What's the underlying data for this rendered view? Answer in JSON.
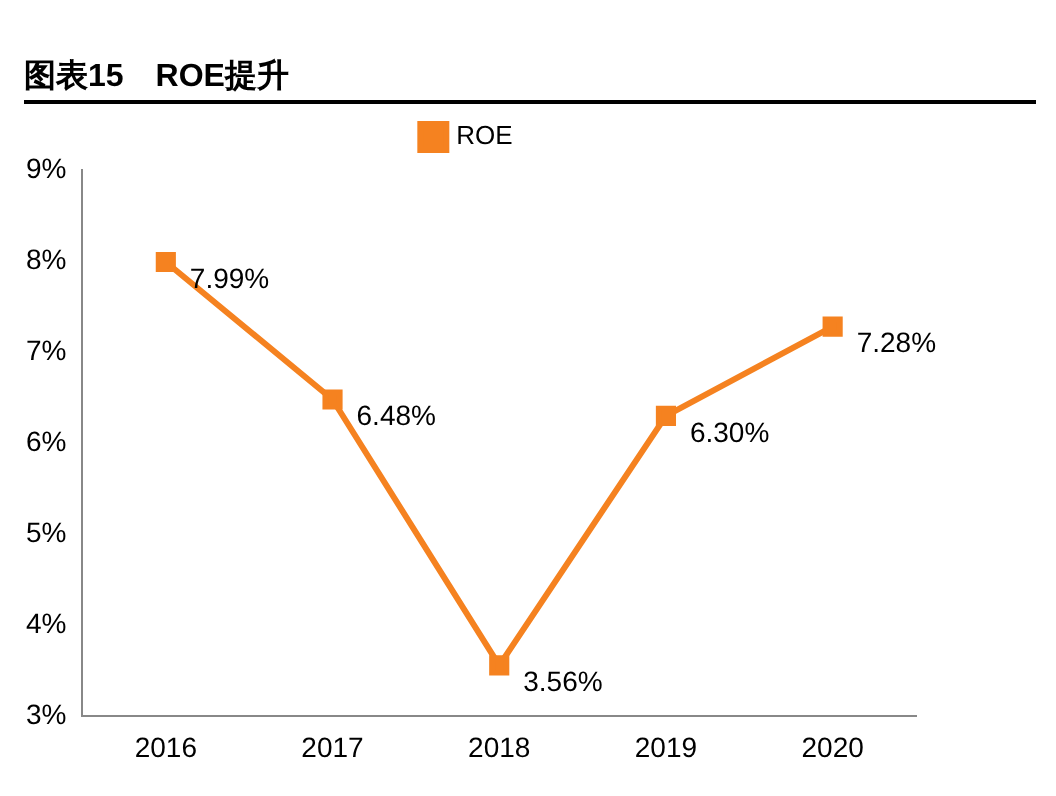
{
  "chart_data": {
    "type": "line",
    "title": "图表15　ROE提升",
    "categories": [
      "2016",
      "2017",
      "2018",
      "2019",
      "2020"
    ],
    "series": [
      {
        "name": "ROE",
        "color": "#f58220",
        "values": [
          7.99,
          6.48,
          3.56,
          6.3,
          7.28
        ],
        "value_labels": [
          "7.99%",
          "6.48%",
          "3.56%",
          "6.30%",
          "7.28%"
        ]
      }
    ],
    "ylim": [
      3,
      9
    ],
    "yticks": [
      {
        "value": 3,
        "label": "3%"
      },
      {
        "value": 4,
        "label": "4%"
      },
      {
        "value": 5,
        "label": "5%"
      },
      {
        "value": 6,
        "label": "6%"
      },
      {
        "value": 7,
        "label": "7%"
      },
      {
        "value": 8,
        "label": "8%"
      },
      {
        "value": 9,
        "label": "9%"
      }
    ],
    "grid": false,
    "legend": "top",
    "marker": "square",
    "line_style": "solid"
  }
}
